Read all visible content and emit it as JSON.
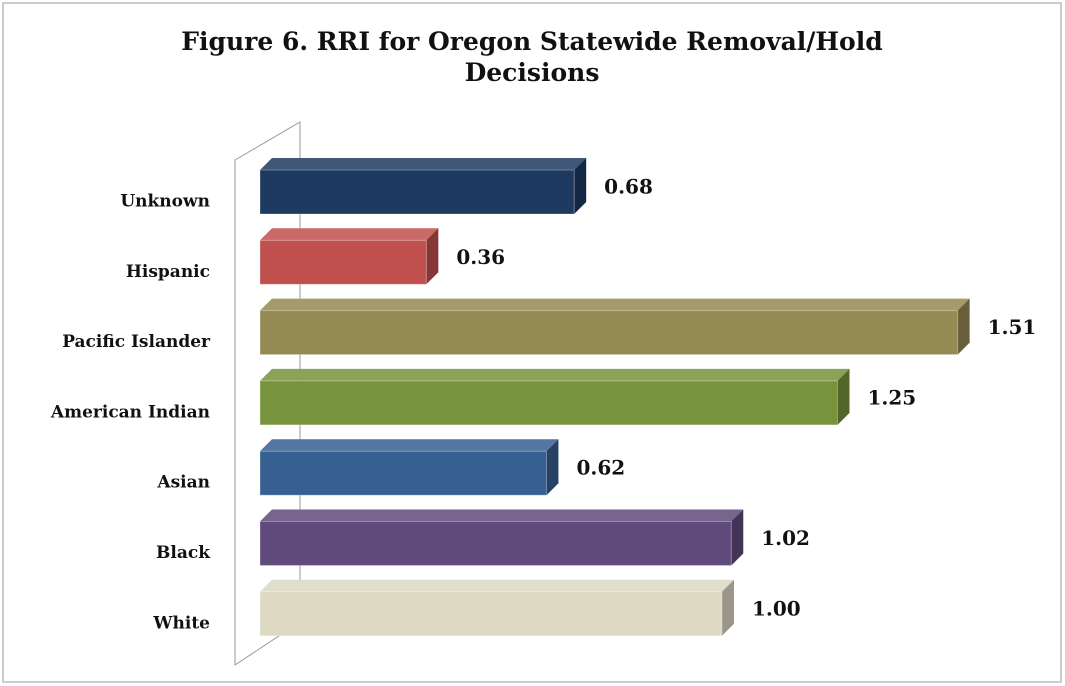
{
  "chart_data": {
    "type": "bar",
    "orientation": "horizontal",
    "title": "Figure 6. RRI for Oregon Statewide Removal/Hold Decisions",
    "categories": [
      "Unknown",
      "Hispanic",
      "Pacific Islander",
      "American Indian",
      "Asian",
      "Black",
      "White"
    ],
    "values": [
      0.68,
      0.36,
      1.51,
      1.25,
      0.62,
      1.02,
      1.0
    ],
    "value_labels": [
      "0.68",
      "0.36",
      "1.51",
      "1.25",
      "0.62",
      "1.02",
      "1.00"
    ],
    "colors": [
      "#1f3a60",
      "#c0504d",
      "#948a54",
      "#77933c",
      "#376092",
      "#604a7b",
      "#ddd9c3"
    ]
  }
}
